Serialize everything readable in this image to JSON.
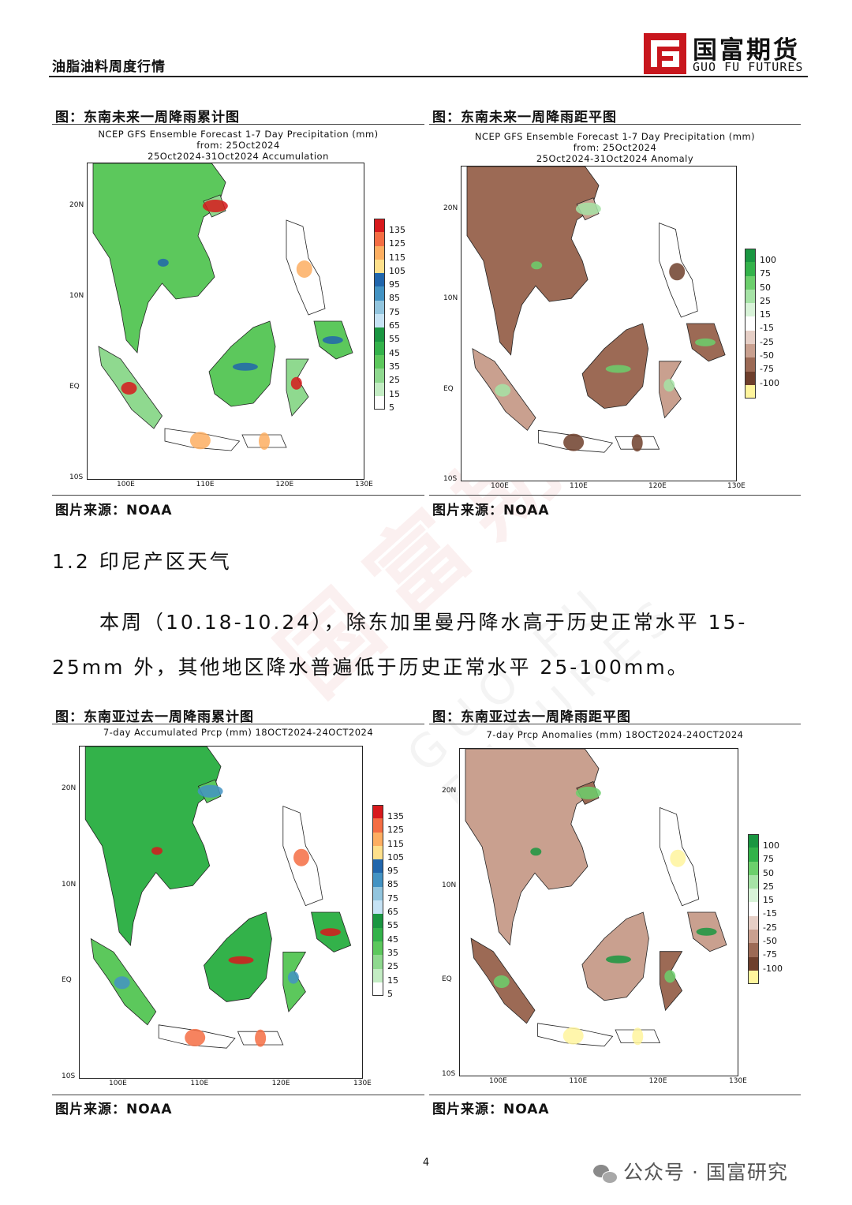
{
  "header": {
    "title": "油脂油料周度行情",
    "logo_cn": "国富期货",
    "logo_en": "GUO FU FUTURES"
  },
  "figures": [
    {
      "caption": "图：东南未来一周降雨累计图",
      "title_lines": [
        "NCEP GFS Ensemble Forecast 1-7 Day Precipitation (mm)",
        "from: 25Oct2024",
        "25Oct2024-31Oct2024 Accumulation"
      ],
      "legend_labels": [
        "135",
        "125",
        "115",
        "105",
        "95",
        "85",
        "75",
        "65",
        "55",
        "45",
        "35",
        "25",
        "15",
        "5"
      ],
      "legend_colors": [
        "#d7191c",
        "#f46d43",
        "#fdae61",
        "#fee08b",
        "#2166ac",
        "#4393c3",
        "#92c5de",
        "#c6e3f5",
        "#1a9641",
        "#33b24a",
        "#5cc85c",
        "#8fd98f",
        "#c3ecc3",
        "#ffffff"
      ],
      "y_ticks": [
        "20N",
        "10N",
        "EQ",
        "10S"
      ],
      "x_ticks": [
        "100E",
        "110E",
        "120E",
        "130E"
      ],
      "source": "图片来源：NOAA"
    },
    {
      "caption": "图：东南未来一周降雨距平图",
      "title_lines": [
        "NCEP GFS Ensemble Forecast 1-7 Day Precipitation (mm)",
        "from: 25Oct2024",
        "25Oct2024-31Oct2024 Anomaly"
      ],
      "legend_labels": [
        "100",
        "75",
        "50",
        "25",
        "15",
        "-15",
        "-25",
        "-50",
        "-75",
        "-100"
      ],
      "legend_colors": [
        "#1a9641",
        "#33b24a",
        "#6ccf6c",
        "#a6e3a6",
        "#d8f3d8",
        "#ffffff",
        "#e6cfc6",
        "#c9a08f",
        "#9c6a55",
        "#6e3f2c",
        "#fff59d"
      ],
      "y_ticks": [
        "20N",
        "10N",
        "EQ",
        "10S"
      ],
      "x_ticks": [
        "100E",
        "110E",
        "120E",
        "130E"
      ],
      "source": "图片来源：NOAA"
    },
    {
      "caption": "图：东南亚过去一周降雨累计图",
      "title_lines": [
        "7-day Accumulated Prcp (mm) 18OCT2024-24OCT2024"
      ],
      "legend_labels": [
        "135",
        "125",
        "115",
        "105",
        "95",
        "85",
        "75",
        "65",
        "55",
        "45",
        "35",
        "25",
        "15",
        "5"
      ],
      "legend_colors": [
        "#d7191c",
        "#f46d43",
        "#fdae61",
        "#fee08b",
        "#2166ac",
        "#4393c3",
        "#92c5de",
        "#c6e3f5",
        "#1a9641",
        "#33b24a",
        "#5cc85c",
        "#8fd98f",
        "#c3ecc3",
        "#ffffff"
      ],
      "y_ticks": [
        "20N",
        "10N",
        "EQ",
        "10S"
      ],
      "x_ticks": [
        "100E",
        "110E",
        "120E",
        "130E"
      ],
      "source": "图片来源：NOAA"
    },
    {
      "caption": "图：东南亚过去一周降雨距平图",
      "title_lines": [
        "7-day Prcp Anomalies (mm) 18OCT2024-24OCT2024"
      ],
      "legend_labels": [
        "100",
        "75",
        "50",
        "25",
        "15",
        "-15",
        "-25",
        "-50",
        "-75",
        "-100"
      ],
      "legend_colors": [
        "#1a9641",
        "#33b24a",
        "#6ccf6c",
        "#a6e3a6",
        "#d8f3d8",
        "#ffffff",
        "#e6cfc6",
        "#c9a08f",
        "#9c6a55",
        "#6e3f2c",
        "#fff59d"
      ],
      "y_ticks": [
        "20N",
        "10N",
        "EQ",
        "10S"
      ],
      "x_ticks": [
        "100E",
        "110E",
        "120E",
        "130E"
      ],
      "source": "图片来源：NOAA"
    }
  ],
  "section": {
    "heading": "1.2 印尼产区天气",
    "paragraph": "本周（10.18-10.24），除东加里曼丹降水高于历史正常水平 15-25mm 外，其他地区降水普遍低于历史正常水平 25-100mm。"
  },
  "footer": {
    "page_number": "4",
    "brand": "公众号 · 国富研究"
  },
  "watermark": {
    "cn": "国富期货",
    "en": "GUO FU FUTURES"
  }
}
